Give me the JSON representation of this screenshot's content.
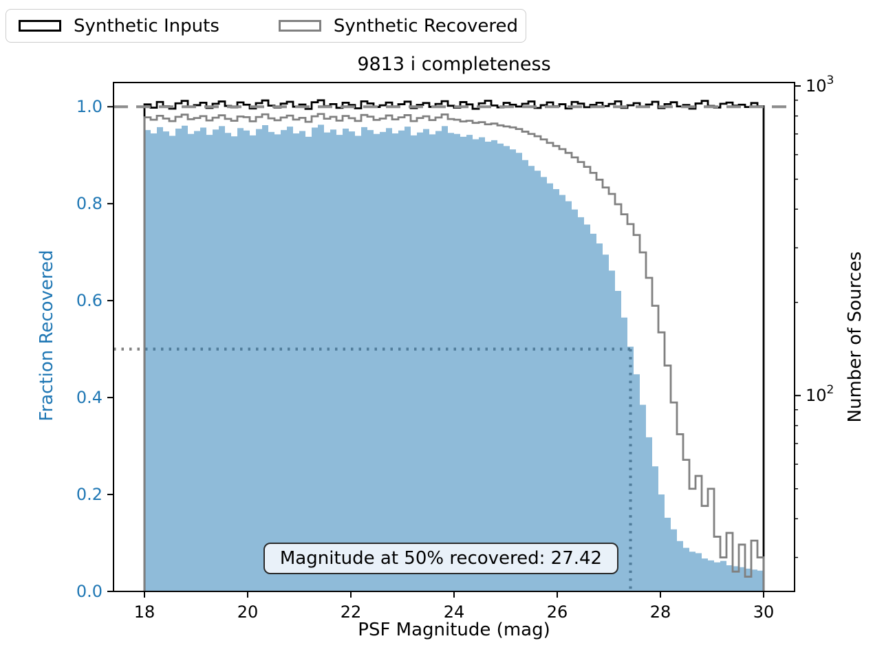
{
  "title": "9813 i completeness",
  "legend": {
    "items": [
      {
        "label": "Synthetic Inputs",
        "color": "#000000"
      },
      {
        "label": "Synthetic Recovered",
        "color": "#808080"
      }
    ]
  },
  "axes": {
    "xlabel": "PSF Magnitude (mag)",
    "ylabel_left": "Fraction Recovered",
    "ylabel_right": "Number of Sources"
  },
  "annotation": {
    "text": "Magnitude at 50% recovered: 27.42"
  },
  "colors": {
    "blue": "#1f77b4",
    "fill_opacity": 0.5,
    "gray": "#808080",
    "dashed_gray": "#8c8c8c",
    "black": "#000000",
    "annotation_bg": "#e9f1f9",
    "annotation_border": "#2a2a2a",
    "legend_border": "#cccccc"
  },
  "chart_data": {
    "type": "bar",
    "title": "9813 i completeness",
    "xlabel": "PSF Magnitude (mag)",
    "ylabel_left": "Fraction Recovered",
    "ylabel_right": "Number of Sources",
    "grid": false,
    "legend_position": "upper left outside axes",
    "xlim": [
      17.4,
      30.6
    ],
    "ylim_left": [
      0,
      1.05
    ],
    "ylim_right": [
      23.3,
      1026
    ],
    "right_axis_scale": "log",
    "x_ticks": [
      18,
      20,
      22,
      24,
      26,
      28,
      30
    ],
    "y_ticks_left": [
      "0.0",
      "0.2",
      "0.4",
      "0.6",
      "0.8",
      "1.0"
    ],
    "y_ticks_left_values": [
      0.0,
      0.2,
      0.4,
      0.6,
      0.8,
      1.0
    ],
    "y_ticks_right": [
      {
        "base": "10",
        "exp": "2",
        "value": 100
      },
      {
        "base": "10",
        "exp": "3",
        "value": 1000
      }
    ],
    "y_minor_ticks_right": [
      30,
      40,
      50,
      60,
      70,
      80,
      90,
      200,
      300,
      400,
      500,
      600,
      700,
      800,
      900
    ],
    "bin_start": 18.0,
    "bin_width": 0.12,
    "n_bins": 100,
    "reference": {
      "dashed_y": 1.0,
      "dotted_y": 0.5,
      "dotted_x": 27.42,
      "mag_at_50pct": 27.42
    },
    "series": [
      {
        "name": "Fraction Recovered (filled histogram, left axis)",
        "values": [
          0.952,
          0.945,
          0.958,
          0.949,
          0.94,
          0.955,
          0.961,
          0.944,
          0.95,
          0.957,
          0.942,
          0.953,
          0.96,
          0.946,
          0.939,
          0.956,
          0.951,
          0.941,
          0.954,
          0.962,
          0.948,
          0.943,
          0.952,
          0.959,
          0.945,
          0.95,
          0.938,
          0.957,
          0.963,
          0.947,
          0.953,
          0.942,
          0.955,
          0.949,
          0.94,
          0.958,
          0.952,
          0.944,
          0.948,
          0.956,
          0.945,
          0.951,
          0.959,
          0.941,
          0.947,
          0.954,
          0.943,
          0.95,
          0.96,
          0.946,
          0.944,
          0.938,
          0.942,
          0.933,
          0.937,
          0.928,
          0.931,
          0.924,
          0.919,
          0.912,
          0.905,
          0.89,
          0.878,
          0.868,
          0.855,
          0.842,
          0.83,
          0.818,
          0.805,
          0.788,
          0.772,
          0.757,
          0.738,
          0.718,
          0.695,
          0.662,
          0.62,
          0.565,
          0.505,
          0.448,
          0.385,
          0.318,
          0.258,
          0.2,
          0.152,
          0.128,
          0.104,
          0.09,
          0.082,
          0.079,
          0.068,
          0.064,
          0.06,
          0.063,
          0.054,
          0.052,
          0.05,
          0.047,
          0.045,
          0.043
        ]
      },
      {
        "name": "Synthetic Inputs (black step, right log axis)",
        "values": [
          872,
          851,
          888,
          860,
          845,
          879,
          895,
          858,
          867,
          883,
          849,
          876,
          891,
          862,
          853,
          885,
          870,
          846,
          880,
          898,
          864,
          852,
          877,
          889,
          857,
          871,
          843,
          886,
          899,
          861,
          874,
          850,
          883,
          868,
          847,
          892,
          878,
          855,
          866,
          884,
          859,
          873,
          890,
          848,
          869,
          881,
          856,
          875,
          893,
          863,
          851,
          887,
          872,
          844,
          879,
          896,
          865,
          853,
          882,
          870,
          858,
          876,
          891,
          849,
          867,
          885,
          860,
          873,
          846,
          888,
          877,
          854,
          869,
          883,
          861,
          875,
          892,
          850,
          866,
          880,
          857,
          871,
          889,
          848,
          874,
          886,
          859,
          868,
          845,
          878,
          895,
          862,
          852,
          876,
          884,
          864,
          870,
          855,
          881,
          860
        ]
      },
      {
        "name": "Synthetic Recovered (gray step, right log axis)",
        "values": [
          792,
          778,
          801,
          785,
          770,
          795,
          808,
          781,
          788,
          799,
          774,
          790,
          804,
          783,
          772,
          797,
          793,
          769,
          794,
          810,
          786,
          775,
          791,
          802,
          779,
          789,
          766,
          798,
          812,
          784,
          795,
          773,
          800,
          787,
          771,
          806,
          796,
          777,
          785,
          803,
          780,
          792,
          805,
          770,
          788,
          798,
          776,
          791,
          809,
          782,
          778,
          768,
          772,
          760,
          764,
          752,
          756,
          746,
          740,
          735,
          726,
          712,
          700,
          688,
          672,
          655,
          640,
          625,
          608,
          588,
          568,
          548,
          524,
          498,
          470,
          448,
          415,
          385,
          358,
          330,
          290,
          240,
          195,
          160,
          125,
          95,
          75,
          62,
          50,
          55,
          44,
          50,
          35,
          30,
          36,
          27,
          33,
          26,
          34,
          30
        ]
      }
    ]
  }
}
